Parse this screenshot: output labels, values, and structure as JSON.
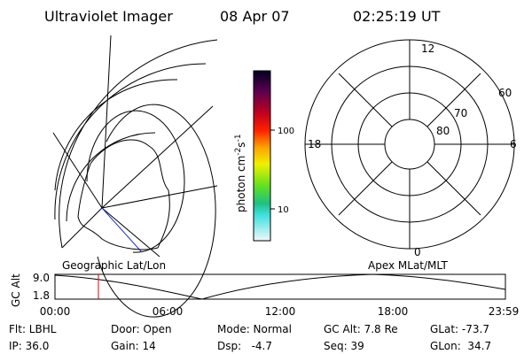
{
  "header": {
    "title": "Ultraviolet Imager",
    "date": "08 Apr 07",
    "time": "02:25:19 UT"
  },
  "colorbar": {
    "label": "photon cm",
    "exp1": "-2",
    "unit2": "s",
    "exp2": "-1",
    "ticks": [
      "100",
      "10"
    ]
  },
  "geo_map": {
    "label": "Geographic Lat/Lon"
  },
  "polar_map": {
    "label": "Apex MLat/MLT",
    "mlt": [
      "12",
      "18",
      "6",
      "0"
    ],
    "mlat": [
      "60",
      "70",
      "80"
    ]
  },
  "altitude": {
    "axis_label": "GC Alt",
    "yticks": [
      "9.0",
      "1.8"
    ],
    "xticks": [
      "00:00",
      "06:00",
      "12:00",
      "18:00",
      "23:59"
    ]
  },
  "info": [
    [
      "Flt: LBHL",
      "Door: Open",
      "Mode: Normal",
      "GC Alt: 7.8 Re",
      "GLat: -73.7"
    ],
    [
      "IP: 36.0",
      "Gain: 14",
      "Dsp:   -4.7",
      "Seq: 39",
      "GLon:  34.7"
    ]
  ]
}
